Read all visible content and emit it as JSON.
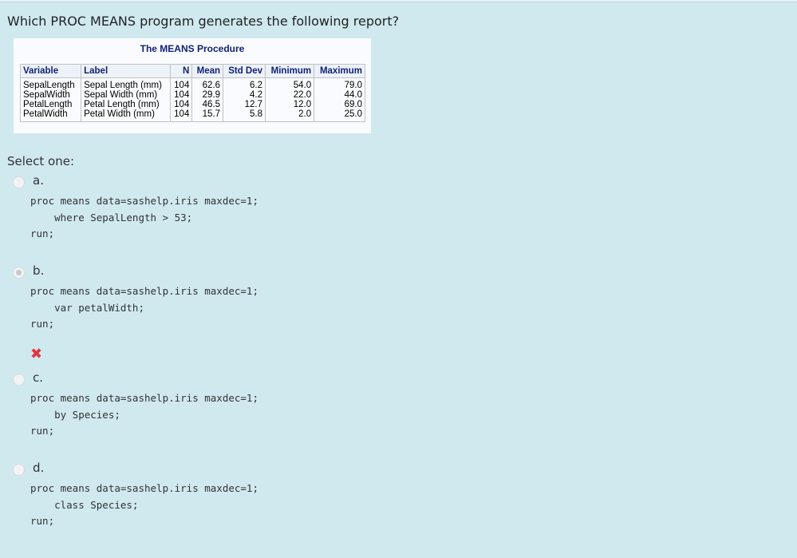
{
  "question": "Which PROC MEANS program generates the following report?",
  "report": {
    "title": "The MEANS Procedure",
    "headers": [
      "Variable",
      "Label",
      "N",
      "Mean",
      "Std Dev",
      "Minimum",
      "Maximum"
    ],
    "rows": [
      [
        "SepalLength",
        "Sepal Length (mm)",
        "104",
        "62.6",
        "6.2",
        "54.0",
        "79.0"
      ],
      [
        "SepalWidth",
        "Sepal Width (mm)",
        "104",
        "29.9",
        "4.2",
        "22.0",
        "44.0"
      ],
      [
        "PetalLength",
        "Petal Length (mm)",
        "104",
        "46.5",
        "12.7",
        "12.0",
        "69.0"
      ],
      [
        "PetalWidth",
        "Petal Width (mm)",
        "104",
        "15.7",
        "5.8",
        "2.0",
        "25.0"
      ]
    ]
  },
  "select_label": "Select one:",
  "options": [
    {
      "letter": "a.",
      "lines": [
        "proc means data=sashelp.iris maxdec=1;",
        "    where SepalLength > 53;",
        "run;"
      ],
      "selected": false
    },
    {
      "letter": "b.",
      "lines": [
        "proc means data=sashelp.iris maxdec=1;",
        "    var petalWidth;",
        "run;"
      ],
      "selected": true
    },
    {
      "letter": "c.",
      "lines": [
        "proc means data=sashelp.iris maxdec=1;",
        "    by Species;",
        "run;"
      ],
      "selected": false
    },
    {
      "letter": "d.",
      "lines": [
        "proc means data=sashelp.iris maxdec=1;",
        "    class Species;",
        "run;"
      ],
      "selected": false
    }
  ],
  "feedback": {
    "icon": "incorrect-x-icon",
    "symbol": "✖",
    "color": "#e4343e"
  }
}
